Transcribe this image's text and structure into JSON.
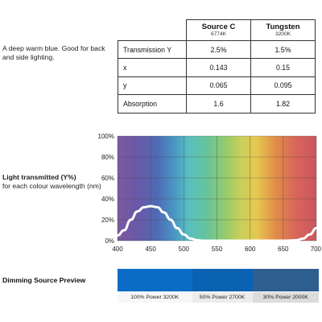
{
  "description": "A deep warm blue. Good for back and side lighting.",
  "table": {
    "columns": [
      {
        "name": "Source C",
        "sub": "6774K"
      },
      {
        "name": "Tungsten",
        "sub": "3200K"
      }
    ],
    "rows": [
      {
        "label": "Transmission Y",
        "values": [
          "2.5%",
          "1.5%"
        ]
      },
      {
        "label": "x",
        "values": [
          "0.143",
          "0.15"
        ]
      },
      {
        "label": "y",
        "values": [
          "0.065",
          "0.095"
        ]
      },
      {
        "label": "Absorption",
        "values": [
          "1.6",
          "1.82"
        ]
      }
    ]
  },
  "chart_caption": {
    "title": "Light transmitted (Y%)",
    "subtitle": "for each colour wavelength (nm)"
  },
  "chart_data": {
    "type": "line",
    "title": "",
    "xlabel": "",
    "ylabel": "",
    "xlim": [
      400,
      700
    ],
    "ylim": [
      0,
      100
    ],
    "x_ticks": [
      "400",
      "450",
      "500",
      "550",
      "600",
      "650",
      "700"
    ],
    "y_ticks": [
      "0%",
      "20%",
      "40%",
      "60%",
      "80%",
      "100%"
    ],
    "grid": true,
    "background": "visible spectrum gradient",
    "series": [
      {
        "color": "#ffffff",
        "x": [
          400,
          410,
          420,
          430,
          440,
          450,
          460,
          470,
          480,
          490,
          500,
          510,
          520,
          530,
          540,
          550,
          600,
          650,
          670,
          680,
          690,
          700
        ],
        "y": [
          5,
          10,
          20,
          28,
          32,
          33,
          32,
          27,
          20,
          12,
          6,
          2,
          0.5,
          0,
          0,
          0,
          0,
          0,
          0.5,
          2,
          6,
          12
        ]
      }
    ]
  },
  "dimming": {
    "title": "Dimming Source Preview",
    "segments": [
      {
        "label": "100% Power 3200K",
        "color": "#0a6cc6",
        "fraction": 0.37
      },
      {
        "label": "50% Power 2700K",
        "color": "#0b62b2",
        "fraction": 0.3
      },
      {
        "label": "30% Power 2000K",
        "color": "#2e5d8f",
        "fraction": 0.33
      }
    ],
    "label_backgrounds": [
      "#f7f7f7",
      "#ececec",
      "#dcdcdc"
    ]
  }
}
